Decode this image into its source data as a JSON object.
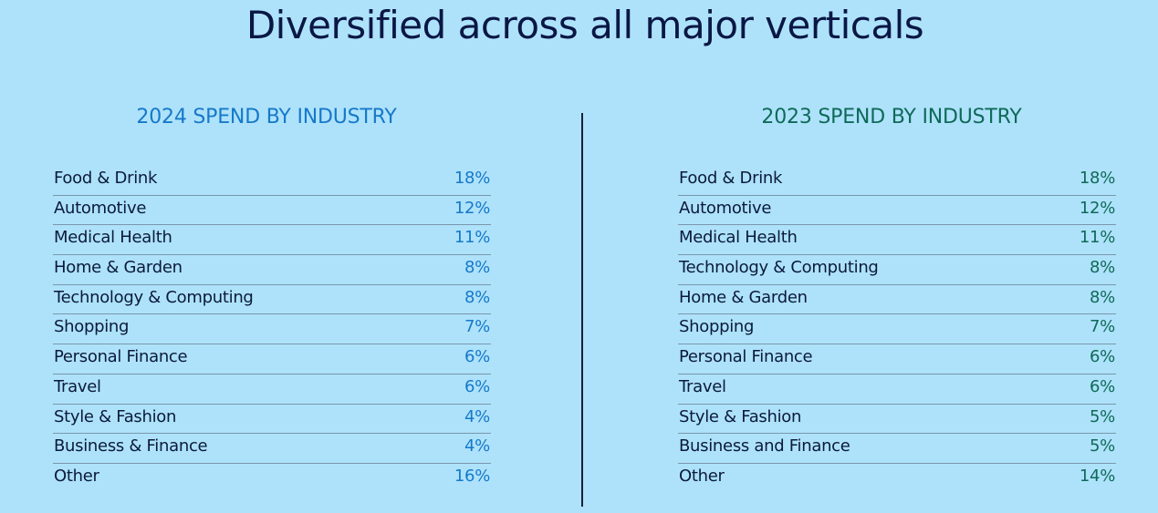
{
  "title": "Diversified across all major verticals",
  "left_panel": {
    "heading": "2024 SPEND BY INDUSTRY",
    "rows": [
      {
        "label": "Food & Drink",
        "value": "18%"
      },
      {
        "label": "Automotive",
        "value": "12%"
      },
      {
        "label": "Medical Health",
        "value": "11%"
      },
      {
        "label": "Home & Garden",
        "value": "8%"
      },
      {
        "label": "Technology & Computing",
        "value": "8%"
      },
      {
        "label": "Shopping",
        "value": "7%"
      },
      {
        "label": "Personal Finance",
        "value": "6%"
      },
      {
        "label": "Travel",
        "value": "6%"
      },
      {
        "label": "Style & Fashion",
        "value": "4%"
      },
      {
        "label": "Business & Finance",
        "value": "4%"
      },
      {
        "label": "Other",
        "value": "16%"
      }
    ]
  },
  "right_panel": {
    "heading": "2023 SPEND BY INDUSTRY",
    "rows": [
      {
        "label": "Food & Drink",
        "value": "18%"
      },
      {
        "label": "Automotive",
        "value": "12%"
      },
      {
        "label": "Medical Health",
        "value": "11%"
      },
      {
        "label": "Technology & Computing",
        "value": "8%"
      },
      {
        "label": "Home & Garden",
        "value": "8%"
      },
      {
        "label": "Shopping",
        "value": "7%"
      },
      {
        "label": "Personal Finance",
        "value": "6%"
      },
      {
        "label": "Travel",
        "value": "6%"
      },
      {
        "label": "Style & Fashion",
        "value": "5%"
      },
      {
        "label": "Business and Finance",
        "value": "5%"
      },
      {
        "label": "Other",
        "value": "14%"
      }
    ]
  },
  "colors": {
    "background": "#aee2fb",
    "title": "#0a1744",
    "accent_2024": "#1679c9",
    "accent_2023": "#0f6a58",
    "text": "#0b1a3c",
    "row_rule": "#7a96ab",
    "divider": "#142038"
  }
}
